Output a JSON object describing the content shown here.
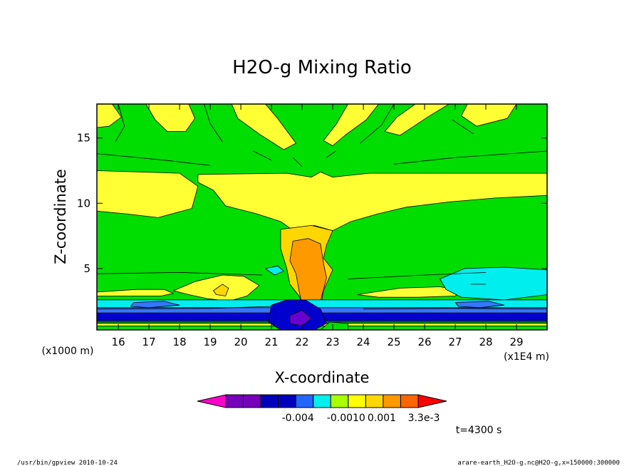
{
  "chart_data": {
    "type": "heatmap",
    "title": "H2O-g Mixing Ratio",
    "xlabel": "X-coordinate",
    "ylabel": "Z-coordinate",
    "y_unit": "(x1000 m)",
    "x_unit": "(x1E4 m)",
    "xlim": [
      15.3,
      30.0
    ],
    "ylim": [
      0.3,
      17.6
    ],
    "x_ticks": [
      {
        "value": 16,
        "label": "16"
      },
      {
        "value": 17,
        "label": "17"
      },
      {
        "value": 18,
        "label": "18"
      },
      {
        "value": 19,
        "label": "19"
      },
      {
        "value": 20,
        "label": "20"
      },
      {
        "value": 21,
        "label": "21"
      },
      {
        "value": 22,
        "label": "22"
      },
      {
        "value": 23,
        "label": "23"
      },
      {
        "value": 24,
        "label": "24"
      },
      {
        "value": 25,
        "label": "25"
      },
      {
        "value": 26,
        "label": "26"
      },
      {
        "value": 27,
        "label": "27"
      },
      {
        "value": 28,
        "label": "28"
      },
      {
        "value": 29,
        "label": "29"
      }
    ],
    "y_ticks": [
      {
        "value": 5,
        "label": "5"
      },
      {
        "value": 10,
        "label": "10"
      },
      {
        "value": 15,
        "label": "15"
      }
    ],
    "background_color": "#00dd00",
    "regions": [
      {
        "color": "#ffff33",
        "pts": [
          [
            16.9,
            17.6
          ],
          [
            18.3,
            17.6
          ],
          [
            18.5,
            16.5
          ],
          [
            18.2,
            15.5
          ],
          [
            17.6,
            15.5
          ],
          [
            17.2,
            16.4
          ]
        ]
      },
      {
        "color": "#ffff33",
        "pts": [
          [
            19.7,
            17.6
          ],
          [
            20.8,
            17.6
          ],
          [
            21.2,
            16.5
          ],
          [
            21.8,
            14.6
          ],
          [
            21.4,
            14.1
          ],
          [
            20.6,
            15.3
          ],
          [
            19.9,
            16.5
          ]
        ]
      },
      {
        "color": "#ffff33",
        "pts": [
          [
            23.5,
            17.6
          ],
          [
            24.5,
            17.6
          ],
          [
            24.1,
            16.4
          ],
          [
            23.4,
            15.2
          ],
          [
            23.0,
            14.4
          ],
          [
            22.7,
            14.8
          ],
          [
            23.1,
            16.0
          ]
        ]
      },
      {
        "color": "#ffff33",
        "pts": [
          [
            25.7,
            17.6
          ],
          [
            26.8,
            17.6
          ],
          [
            26.1,
            16.6
          ],
          [
            25.2,
            15.2
          ],
          [
            24.7,
            15.5
          ],
          [
            25.1,
            16.6
          ]
        ]
      },
      {
        "color": "#ffff33",
        "pts": [
          [
            27.4,
            17.6
          ],
          [
            29.0,
            17.6
          ],
          [
            28.7,
            16.5
          ],
          [
            27.7,
            15.9
          ],
          [
            27.2,
            16.7
          ]
        ]
      },
      {
        "color": "#ffff33",
        "pts": [
          [
            15.3,
            17.6
          ],
          [
            15.8,
            17.6
          ],
          [
            16.1,
            16.6
          ],
          [
            15.7,
            15.9
          ],
          [
            15.3,
            15.8
          ]
        ]
      },
      {
        "color": "#ffff33",
        "pts": [
          [
            15.3,
            12.5
          ],
          [
            18.0,
            12.3
          ],
          [
            18.6,
            11.3
          ],
          [
            18.4,
            9.6
          ],
          [
            17.3,
            8.9
          ],
          [
            16.2,
            9.2
          ],
          [
            15.3,
            9.4
          ]
        ]
      },
      {
        "color": "#ffff33",
        "pts": [
          [
            18.6,
            12.2
          ],
          [
            21.5,
            12.3
          ],
          [
            22.3,
            12.0
          ],
          [
            22.6,
            12.4
          ],
          [
            23.0,
            12.0
          ],
          [
            24.2,
            12.3
          ],
          [
            30.0,
            12.3
          ],
          [
            30.0,
            10.6
          ],
          [
            28.3,
            10.4
          ],
          [
            26.8,
            10.1
          ],
          [
            25.4,
            9.7
          ],
          [
            24.5,
            9.2
          ],
          [
            23.6,
            8.6
          ],
          [
            23.0,
            7.9
          ],
          [
            22.4,
            8.3
          ],
          [
            21.6,
            8.1
          ],
          [
            21.3,
            8.6
          ],
          [
            20.5,
            9.2
          ],
          [
            19.5,
            9.8
          ],
          [
            19.1,
            11.0
          ],
          [
            18.6,
            11.6
          ]
        ]
      },
      {
        "color": "#ffd700",
        "pts": [
          [
            21.3,
            8.0
          ],
          [
            22.3,
            8.3
          ],
          [
            23.0,
            7.9
          ],
          [
            22.8,
            6.8
          ],
          [
            22.7,
            5.8
          ],
          [
            23.0,
            4.9
          ],
          [
            22.7,
            3.3
          ],
          [
            22.6,
            2.0
          ],
          [
            22.1,
            1.7
          ],
          [
            21.9,
            2.9
          ],
          [
            21.6,
            3.8
          ],
          [
            21.5,
            5.0
          ],
          [
            21.3,
            6.5
          ]
        ]
      },
      {
        "color": "#ff9900",
        "pts": [
          [
            21.7,
            7.1
          ],
          [
            22.2,
            7.3
          ],
          [
            22.6,
            6.9
          ],
          [
            22.7,
            5.4
          ],
          [
            22.8,
            4.3
          ],
          [
            22.6,
            2.5
          ],
          [
            22.3,
            1.7
          ],
          [
            22.0,
            2.2
          ],
          [
            21.9,
            3.3
          ],
          [
            21.8,
            4.6
          ],
          [
            21.6,
            5.6
          ]
        ]
      },
      {
        "color": "#ffff33",
        "pts": [
          [
            18.5,
            4.0
          ],
          [
            19.4,
            4.5
          ],
          [
            20.1,
            4.4
          ],
          [
            20.6,
            3.7
          ],
          [
            20.2,
            2.9
          ],
          [
            19.6,
            2.5
          ],
          [
            18.9,
            2.7
          ],
          [
            18.3,
            3.0
          ],
          [
            17.8,
            3.3
          ]
        ]
      },
      {
        "color": "#ffd700",
        "pts": [
          [
            19.1,
            3.3
          ],
          [
            19.4,
            3.8
          ],
          [
            19.6,
            3.5
          ],
          [
            19.5,
            2.9
          ],
          [
            19.2,
            3.0
          ]
        ]
      },
      {
        "color": "#ffff33",
        "pts": [
          [
            15.3,
            3.2
          ],
          [
            16.6,
            3.4
          ],
          [
            17.5,
            3.4
          ],
          [
            17.8,
            3.1
          ],
          [
            17.4,
            2.9
          ],
          [
            16.5,
            2.9
          ],
          [
            15.3,
            2.9
          ]
        ]
      },
      {
        "color": "#ffff33",
        "pts": [
          [
            23.8,
            3.0
          ],
          [
            25.2,
            3.5
          ],
          [
            26.5,
            3.6
          ],
          [
            27.2,
            3.3
          ],
          [
            27.0,
            2.9
          ],
          [
            25.8,
            2.8
          ],
          [
            24.5,
            2.8
          ]
        ]
      },
      {
        "color": "#00eeee",
        "pts": [
          [
            26.5,
            4.2
          ],
          [
            27.3,
            5.0
          ],
          [
            28.6,
            5.1
          ],
          [
            30.0,
            4.9
          ],
          [
            30.0,
            3.0
          ],
          [
            28.6,
            2.6
          ],
          [
            27.2,
            2.8
          ],
          [
            26.7,
            3.4
          ]
        ]
      },
      {
        "color": "#00eeee",
        "pts": [
          [
            20.8,
            5.0
          ],
          [
            21.2,
            5.2
          ],
          [
            21.4,
            4.8
          ],
          [
            21.1,
            4.5
          ]
        ]
      },
      {
        "color": "#00eeee",
        "pts": [
          [
            15.3,
            2.6
          ],
          [
            30.0,
            2.6
          ],
          [
            30.0,
            1.3
          ],
          [
            15.3,
            1.3
          ]
        ]
      },
      {
        "color": "#3377ff",
        "pts": [
          [
            15.3,
            2.0
          ],
          [
            30.0,
            2.0
          ],
          [
            30.0,
            0.9
          ],
          [
            15.3,
            0.9
          ]
        ]
      },
      {
        "color": "#0000cc",
        "pts": [
          [
            15.3,
            1.6
          ],
          [
            30.0,
            1.6
          ],
          [
            30.0,
            1.0
          ],
          [
            15.3,
            1.0
          ]
        ]
      },
      {
        "color": "#3377ff",
        "pts": [
          [
            16.5,
            2.4
          ],
          [
            17.5,
            2.5
          ],
          [
            18.0,
            2.2
          ],
          [
            17.0,
            2.0
          ],
          [
            16.4,
            2.1
          ]
        ]
      },
      {
        "color": "#3377ff",
        "pts": [
          [
            27.0,
            2.4
          ],
          [
            28.1,
            2.5
          ],
          [
            28.6,
            2.2
          ],
          [
            27.8,
            2.0
          ],
          [
            27.1,
            2.1
          ]
        ]
      },
      {
        "color": "#00dd00",
        "pts": [
          [
            15.3,
            0.9
          ],
          [
            30.0,
            0.9
          ],
          [
            30.0,
            0.3
          ],
          [
            15.3,
            0.3
          ]
        ]
      },
      {
        "color": "#ffff33",
        "pts": [
          [
            15.3,
            0.8
          ],
          [
            30.0,
            0.8
          ],
          [
            30.0,
            0.6
          ],
          [
            15.3,
            0.6
          ]
        ]
      },
      {
        "color": "#00dd00",
        "pts": [
          [
            15.3,
            0.6
          ],
          [
            30.0,
            0.6
          ],
          [
            30.0,
            0.3
          ],
          [
            15.3,
            0.3
          ]
        ]
      },
      {
        "color": "#0000cc",
        "pts": [
          [
            21.0,
            2.2
          ],
          [
            21.5,
            2.6
          ],
          [
            22.1,
            2.6
          ],
          [
            22.6,
            1.9
          ],
          [
            22.8,
            0.8
          ],
          [
            22.4,
            0.3
          ],
          [
            21.3,
            0.3
          ],
          [
            20.9,
            0.9
          ]
        ]
      },
      {
        "color": "#6a00d0",
        "pts": [
          [
            21.6,
            1.4
          ],
          [
            22.0,
            1.8
          ],
          [
            22.3,
            1.2
          ],
          [
            22.0,
            0.6
          ],
          [
            21.6,
            0.8
          ]
        ]
      },
      {
        "color": "#00dd00",
        "pts": [
          [
            22.6,
            0.3
          ],
          [
            23.5,
            0.3
          ],
          [
            23.5,
            0.8
          ],
          [
            22.9,
            0.9
          ]
        ]
      }
    ],
    "contour_lines": [
      [
        [
          16.0,
          17.6
        ],
        [
          16.2,
          15.9
        ],
        [
          15.9,
          14.7
        ]
      ],
      [
        [
          18.8,
          17.6
        ],
        [
          19.0,
          16.1
        ],
        [
          19.4,
          14.7
        ]
      ],
      [
        [
          21.7,
          13.5
        ],
        [
          22.0,
          12.8
        ]
      ],
      [
        [
          22.8,
          13.5
        ],
        [
          23.1,
          14.0
        ]
      ],
      [
        [
          25.0,
          17.6
        ],
        [
          24.6,
          16.0
        ],
        [
          23.9,
          14.6
        ]
      ],
      [
        [
          26.9,
          16.4
        ],
        [
          27.6,
          15.3
        ]
      ],
      [
        [
          20.4,
          14.0
        ],
        [
          21.0,
          13.3
        ]
      ],
      [
        [
          15.3,
          13.8
        ],
        [
          17.5,
          13.3
        ],
        [
          19.0,
          12.9
        ]
      ],
      [
        [
          25.0,
          13.0
        ],
        [
          27.0,
          13.5
        ],
        [
          30.0,
          14.0
        ]
      ],
      [
        [
          15.3,
          4.6
        ],
        [
          18.0,
          4.7
        ],
        [
          20.7,
          4.5
        ]
      ],
      [
        [
          23.5,
          4.2
        ],
        [
          26.0,
          4.5
        ],
        [
          28.0,
          4.7
        ]
      ],
      [
        [
          15.3,
          1.9
        ],
        [
          19.0,
          1.95
        ],
        [
          21.0,
          2.1
        ]
      ],
      [
        [
          24.0,
          1.9
        ],
        [
          27.0,
          1.95
        ],
        [
          30.0,
          1.9
        ]
      ],
      [
        [
          27.5,
          3.8
        ],
        [
          28.0,
          3.8
        ]
      ]
    ],
    "colorbar": {
      "colors": [
        "#ff00cc",
        "#7700bb",
        "#7700bb",
        "#0000bb",
        "#0000bb",
        "#2266ff",
        "#00eeee",
        "#aaff00",
        "#ffff00",
        "#ffd700",
        "#ff9900",
        "#ff6600",
        "#ff0000"
      ],
      "labels": [
        "-0.004",
        "-0.0010",
        "0.001",
        "3.3e-3"
      ]
    }
  },
  "footer": {
    "time": "t=4300 s",
    "program": "/usr/bin/gpview  2010-10-24",
    "source": "arare-earth_H2O-g.nc@H2O-g,x=150000:300000"
  }
}
